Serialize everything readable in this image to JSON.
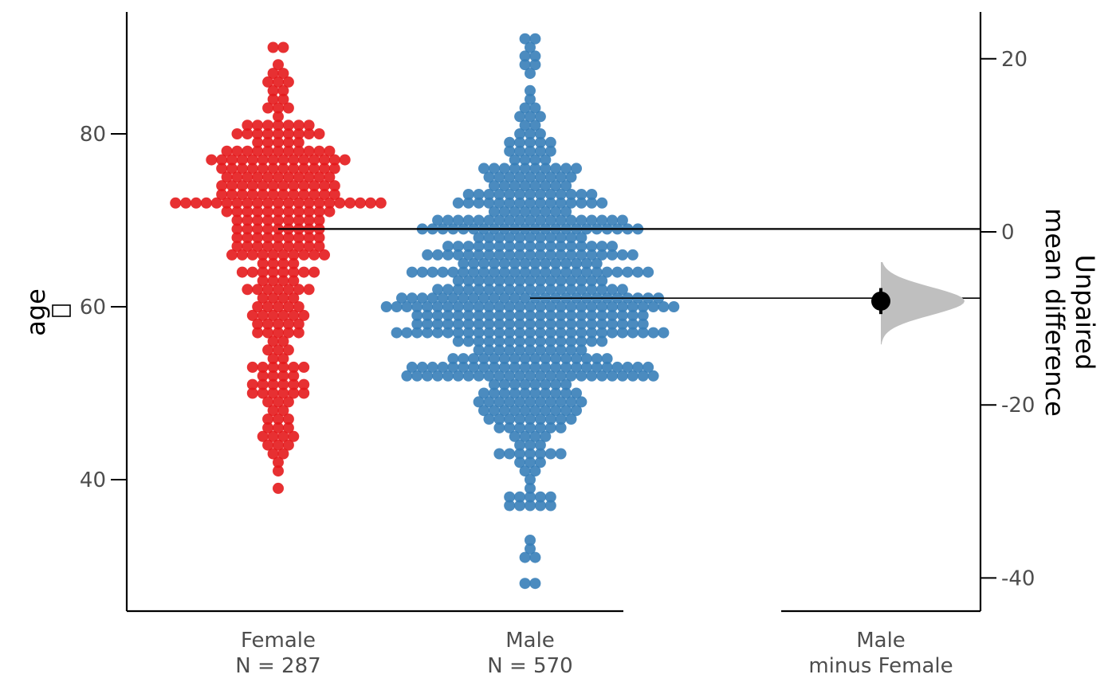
{
  "chart_data": {
    "type": "scatter",
    "subtype": "estimation-plot",
    "left_axis": {
      "label": "age",
      "label_box_glyph": "",
      "ticks": [
        "40",
        "60",
        "80"
      ],
      "tick_values": [
        40,
        60,
        80
      ],
      "ylim": [
        25,
        94
      ]
    },
    "right_axis": {
      "label_line1": "Unpaired",
      "label_line2": "mean difference",
      "ticks": [
        "20",
        "0",
        "-20",
        "-40"
      ],
      "tick_values": [
        20,
        0,
        -20,
        -40
      ],
      "ylim": [
        -43.7,
        25.3
      ]
    },
    "groups": [
      {
        "name": "Female",
        "n_label": "N = 287",
        "color": "#e41a1c",
        "mean": 69,
        "min": 39,
        "max": 90,
        "modes": [
          {
            "mu": 72,
            "sd": 6.5,
            "w": 0.78
          },
          {
            "mu": 51,
            "sd": 5,
            "w": 0.22
          }
        ]
      },
      {
        "name": "Male",
        "n_label": "N = 570",
        "color": "#377eb8",
        "mean": 61,
        "min": 28,
        "max": 91,
        "modes": [
          {
            "mu": 61,
            "sd": 10.5,
            "w": 1.0
          }
        ]
      }
    ],
    "contrast": {
      "label_line1": "Male",
      "label_line2": "minus Female",
      "mean_difference": -8,
      "ci": [
        -9.5,
        -6.5
      ],
      "distribution_range": [
        -13,
        -3.5
      ],
      "distribution_color": "#bfbfbf"
    }
  }
}
